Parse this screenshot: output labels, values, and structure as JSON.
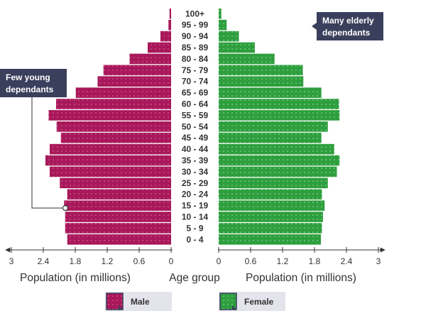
{
  "chart_data": {
    "type": "bar",
    "title": "",
    "age_groups": [
      "0 - 4",
      "5 - 9",
      "10 - 14",
      "15 - 19",
      "20 - 24",
      "25 - 29",
      "30 - 34",
      "35 - 39",
      "40 - 44",
      "45 - 49",
      "50 - 54",
      "55 - 59",
      "60 - 64",
      "65 - 69",
      "70 - 74",
      "75 - 79",
      "80 - 84",
      "85 - 89",
      "90 - 94",
      "95 - 99",
      "100+"
    ],
    "series": [
      {
        "name": "Male",
        "color": "#a8185a",
        "values": [
          1.95,
          1.99,
          1.99,
          2.01,
          1.95,
          2.09,
          2.28,
          2.36,
          2.28,
          2.07,
          2.15,
          2.3,
          2.16,
          1.79,
          1.38,
          1.27,
          0.78,
          0.44,
          0.2,
          0.05,
          0.03
        ]
      },
      {
        "name": "Female",
        "color": "#2e9e3e",
        "values": [
          1.92,
          1.94,
          1.96,
          1.99,
          1.94,
          2.05,
          2.22,
          2.27,
          2.17,
          1.93,
          2.05,
          2.27,
          2.26,
          1.93,
          1.59,
          1.58,
          1.05,
          0.68,
          0.38,
          0.15,
          0.05
        ]
      }
    ],
    "xlim": [
      0,
      3
    ],
    "ticks": [
      "0",
      "0.6",
      "1.2",
      "1.8",
      "2.4",
      "3"
    ],
    "xlabel_left": "Population (in millions)",
    "xlabel_center": "Age group",
    "xlabel_right": "Population (in millions)",
    "legend": [
      "Male",
      "Female"
    ],
    "annotations": [
      {
        "text_lines": [
          "Few young",
          "dependants"
        ],
        "target": "15 - 19"
      },
      {
        "text_lines": [
          "Many elderly",
          "dependants"
        ],
        "target": "100+"
      }
    ]
  },
  "colors": {
    "male": "#a8185a",
    "female": "#2e9e3e",
    "male_dot": "#d15a8c",
    "female_dot": "#7fd28a",
    "callout_bg": "#3a3f5c",
    "legend_bg": "#e4e4ec",
    "axis": "#333333"
  }
}
